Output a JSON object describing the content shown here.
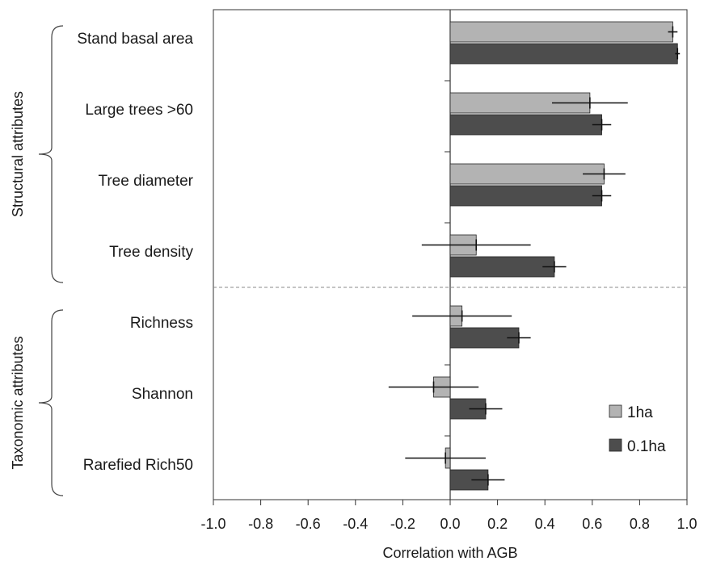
{
  "chart_data": {
    "type": "bar",
    "orientation": "horizontal",
    "xlabel": "Correlation with AGB",
    "xlim": [
      -1.0,
      1.0
    ],
    "xticks": [
      "-1.0",
      "-0.8",
      "-0.6",
      "-0.4",
      "-0.2",
      "0.0",
      "0.2",
      "0.4",
      "0.6",
      "0.8",
      "1.0"
    ],
    "categories": [
      "Stand basal area",
      "Large trees >60",
      "Tree diameter",
      "Tree density",
      "Richness",
      "Shannon",
      "Rarefied Rich50"
    ],
    "groups": [
      {
        "label": "Structural attributes",
        "categories": [
          "Stand basal area",
          "Large trees >60",
          "Tree diameter",
          "Tree density"
        ]
      },
      {
        "label": "Taxonomic attributes",
        "categories": [
          "Richness",
          "Shannon",
          "Rarefied Rich50"
        ]
      }
    ],
    "series": [
      {
        "name": "1ha",
        "color": "#b3b3b3",
        "values": [
          0.94,
          0.59,
          0.65,
          0.11,
          0.05,
          -0.07,
          -0.02
        ],
        "error": [
          0.02,
          0.16,
          0.09,
          0.23,
          0.21,
          0.19,
          0.17
        ]
      },
      {
        "name": "0.1ha",
        "color": "#4d4d4d",
        "values": [
          0.96,
          0.64,
          0.64,
          0.44,
          0.29,
          0.15,
          0.16
        ],
        "error": [
          0.01,
          0.04,
          0.04,
          0.05,
          0.05,
          0.07,
          0.07
        ]
      }
    ],
    "legend_position": "bottom-right",
    "grid": false
  }
}
